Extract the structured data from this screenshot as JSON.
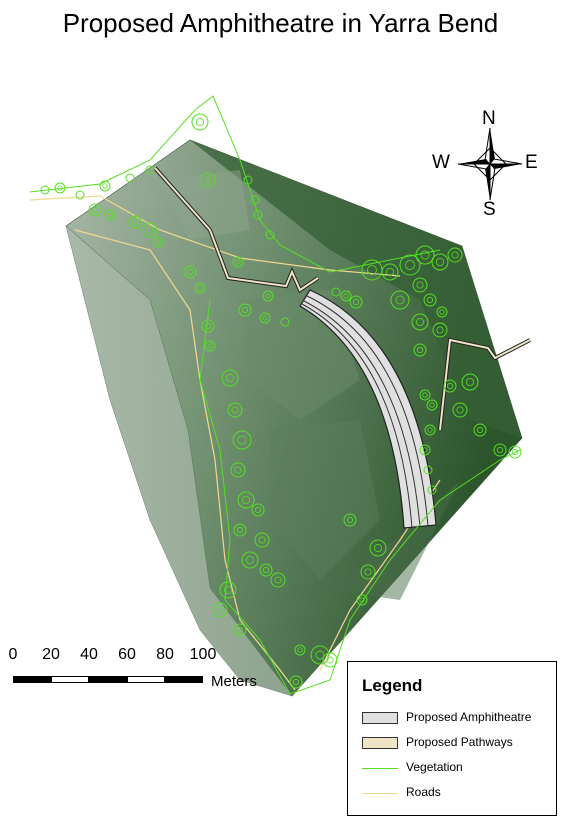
{
  "title": "Proposed Amphitheatre in Yarra Bend",
  "north_arrow": {
    "n": "N",
    "s": "S",
    "e": "E",
    "w": "W"
  },
  "scale_bar": {
    "ticks": [
      "0",
      "20",
      "40",
      "60",
      "80",
      "100"
    ],
    "unit": "Meters"
  },
  "legend": {
    "title": "Legend",
    "items": [
      {
        "label": "Proposed Amphitheatre",
        "kind": "fill",
        "color": "#e0e0e0"
      },
      {
        "label": "Proposed Pathways",
        "kind": "fill",
        "color": "#efe4c4"
      },
      {
        "label": "Vegetation",
        "kind": "line",
        "color": "#55e022"
      },
      {
        "label": "Roads",
        "kind": "line",
        "color": "#f0d890"
      }
    ]
  },
  "colors": {
    "vegetation": "#55e022",
    "roads": "#f0d890",
    "terrain_dark": "#2f5a2f",
    "terrain_light": "#a8b8a8",
    "amphitheatre": "#e0e0e0"
  }
}
